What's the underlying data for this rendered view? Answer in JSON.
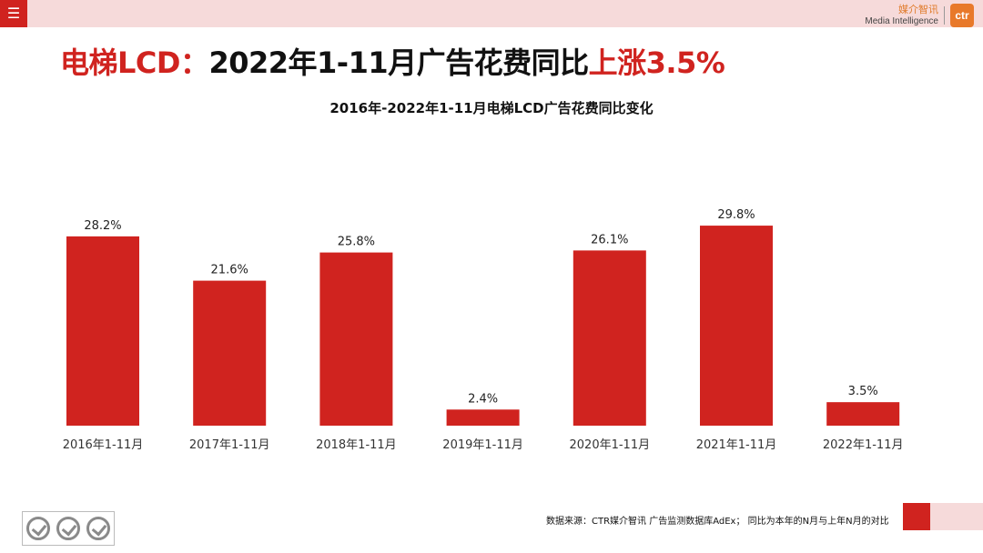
{
  "header": {
    "menu_icon": "hamburger-menu-icon",
    "brand_cn": "媒介智讯",
    "brand_en": "Media Intelligence",
    "brand_logo": "ctr"
  },
  "headline": {
    "part1": "电梯LCD：",
    "part2": "2022年1-11月广告花费同比",
    "part3": "上涨3.5%"
  },
  "colors": {
    "accent": "#d0231f",
    "pink": "#f6dada",
    "brand_orange": "#e8792a"
  },
  "chart_data": {
    "type": "bar",
    "title": "2016年-2022年1-11月电梯LCD广告花费同比变化",
    "categories": [
      "2016年1-11月",
      "2017年1-11月",
      "2018年1-11月",
      "2019年1-11月",
      "2020年1-11月",
      "2021年1-11月",
      "2022年1-11月"
    ],
    "values": [
      28.2,
      21.6,
      25.8,
      2.4,
      26.1,
      29.8,
      3.5
    ],
    "value_labels": [
      "28.2%",
      "21.6%",
      "25.8%",
      "2.4%",
      "26.1%",
      "29.8%",
      "3.5%"
    ],
    "bar_color": "#d0231f",
    "xlabel": "",
    "ylabel": "",
    "ylim": [
      0,
      30
    ],
    "grid": false,
    "legend": "none"
  },
  "footer": {
    "source": "数据来源：CTR媒介智讯 广告监测数据库AdEx；  同比为本年的N月与上年N月的对比",
    "cert_icons": [
      "sgs-badge-icon",
      "sgs-badge-icon",
      "sgs-badge-icon"
    ]
  }
}
